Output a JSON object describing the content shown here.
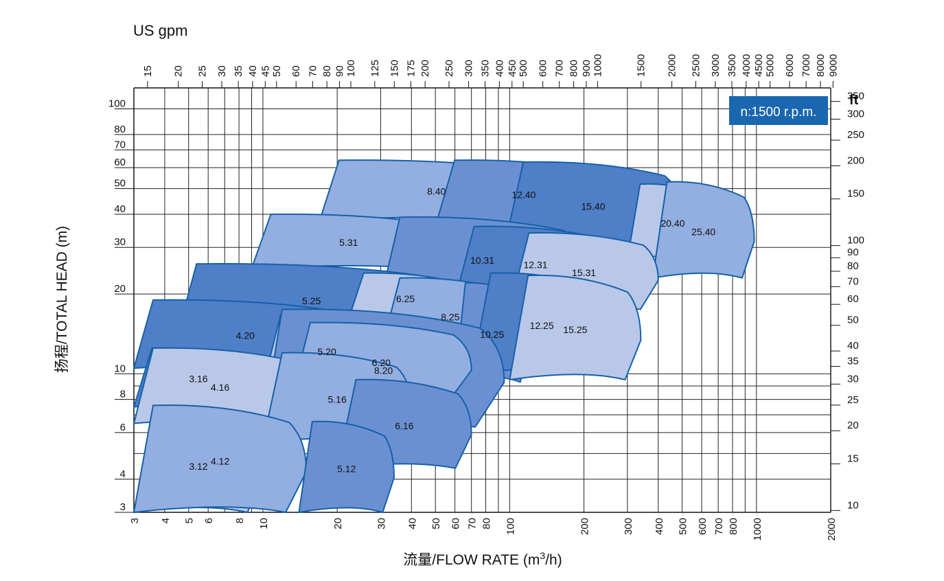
{
  "chart_data": {
    "type": "area",
    "speed_label": "n:1500 r.p.m.",
    "top_axis_title": "US gpm",
    "top_axis_ticks": [
      "15",
      "20",
      "25",
      "30",
      "35",
      "40",
      "45",
      "50",
      "60",
      "70",
      "80",
      "90",
      "100",
      "125",
      "150",
      "175",
      "200",
      "250",
      "300",
      "350",
      "400",
      "450",
      "500",
      "600",
      "700",
      "800",
      "900",
      "1000",
      "1500",
      "2000",
      "2500",
      "3000",
      "3500",
      "4000",
      "4500",
      "5000",
      "6000",
      "7000",
      "8000",
      "9000"
    ],
    "right_axis_title": "ft",
    "right_axis_ticks": [
      "10",
      "15",
      "20",
      "25",
      "30",
      "35",
      "40",
      "50",
      "60",
      "70",
      "80",
      "90",
      "100",
      "150",
      "200",
      "250",
      "300",
      "350"
    ],
    "x_axis": {
      "label_prefix": "流量/FLOW RATE (m",
      "label_sup": "3",
      "label_suffix": "/h)",
      "scale": "log",
      "range": [
        3,
        2000
      ],
      "tick_labels": [
        "3",
        "4",
        "5",
        "6",
        "8",
        "10",
        "20",
        "30",
        "40",
        "50",
        "60",
        "70",
        "80",
        "100",
        "200",
        "300",
        "400",
        "500",
        "600",
        "700",
        "800",
        "1000",
        "2000"
      ]
    },
    "y_axis": {
      "label": "扬程/TOTAL HEAD (m)",
      "scale": "log",
      "range": [
        3,
        120
      ],
      "tick_labels": [
        "3",
        "4",
        "6",
        "8",
        "10",
        "20",
        "30",
        "40",
        "50",
        "60",
        "70",
        "80",
        "100"
      ]
    },
    "pump_models": [
      {
        "name": "3.12",
        "flow_range": [
          3,
          10
        ],
        "head_range": [
          3,
          6.9
        ]
      },
      {
        "name": "4.12",
        "flow_range": [
          3,
          15
        ],
        "head_range": [
          3,
          7.6
        ]
      },
      {
        "name": "5.12",
        "flow_range": [
          14,
          34
        ],
        "head_range": [
          3,
          6.6
        ]
      },
      {
        "name": "3.16",
        "flow_range": [
          3,
          10
        ],
        "head_range": [
          7.5,
          12.5
        ]
      },
      {
        "name": "4.16",
        "flow_range": [
          3,
          15
        ],
        "head_range": [
          6.5,
          12.5
        ]
      },
      {
        "name": "5.16",
        "flow_range": [
          10,
          40
        ],
        "head_range": [
          5.5,
          12
        ]
      },
      {
        "name": "6.16",
        "flow_range": [
          20,
          70
        ],
        "head_range": [
          4.4,
          9.5
        ]
      },
      {
        "name": "4.20",
        "flow_range": [
          3,
          24
        ],
        "head_range": [
          10.5,
          19
        ]
      },
      {
        "name": "5.20",
        "flow_range": [
          10,
          33
        ],
        "head_range": [
          9,
          16.8
        ]
      },
      {
        "name": "6.20",
        "flow_range": [
          13,
          70
        ],
        "head_range": [
          8,
          15.6
        ]
      },
      {
        "name": "8.20",
        "flow_range": [
          10,
          95
        ],
        "head_range": [
          6.3,
          17.5
        ]
      },
      {
        "name": "5.25",
        "flow_range": [
          4.5,
          55
        ],
        "head_range": [
          14,
          26
        ]
      },
      {
        "name": "6.25",
        "flow_range": [
          22,
          65
        ],
        "head_range": [
          15.6,
          24
        ]
      },
      {
        "name": "8.25",
        "flow_range": [
          30,
          110
        ],
        "head_range": [
          12,
          23
        ]
      },
      {
        "name": "10.25",
        "flow_range": [
          60,
          120
        ],
        "head_range": [
          9.3,
          22
        ]
      },
      {
        "name": "12.25",
        "flow_range": [
          70,
          260
        ],
        "head_range": [
          10,
          24
        ]
      },
      {
        "name": "15.25",
        "flow_range": [
          100,
          340
        ],
        "head_range": [
          9.5,
          23.5
        ]
      },
      {
        "name": "5.31",
        "flow_range": [
          9,
          55
        ],
        "head_range": [
          25,
          40
        ]
      },
      {
        "name": "10.31",
        "flow_range": [
          30,
          200
        ],
        "head_range": [
          19,
          39
        ]
      },
      {
        "name": "12.31",
        "flow_range": [
          60,
          270
        ],
        "head_range": [
          19,
          36
        ]
      },
      {
        "name": "15.31",
        "flow_range": [
          100,
          400
        ],
        "head_range": [
          17.5,
          34
        ]
      },
      {
        "name": "8.40",
        "flow_range": [
          17,
          150
        ],
        "head_range": [
          38,
          64
        ]
      },
      {
        "name": "12.40",
        "flow_range": [
          50,
          260
        ],
        "head_range": [
          36,
          64
        ]
      },
      {
        "name": "15.40",
        "flow_range": [
          95,
          500
        ],
        "head_range": [
          30,
          63
        ]
      },
      {
        "name": "20.40",
        "flow_range": [
          300,
          700
        ],
        "head_range": [
          27,
          52
        ]
      },
      {
        "name": "25.40",
        "flow_range": [
          380,
          980
        ],
        "head_range": [
          23,
          53
        ]
      }
    ]
  }
}
